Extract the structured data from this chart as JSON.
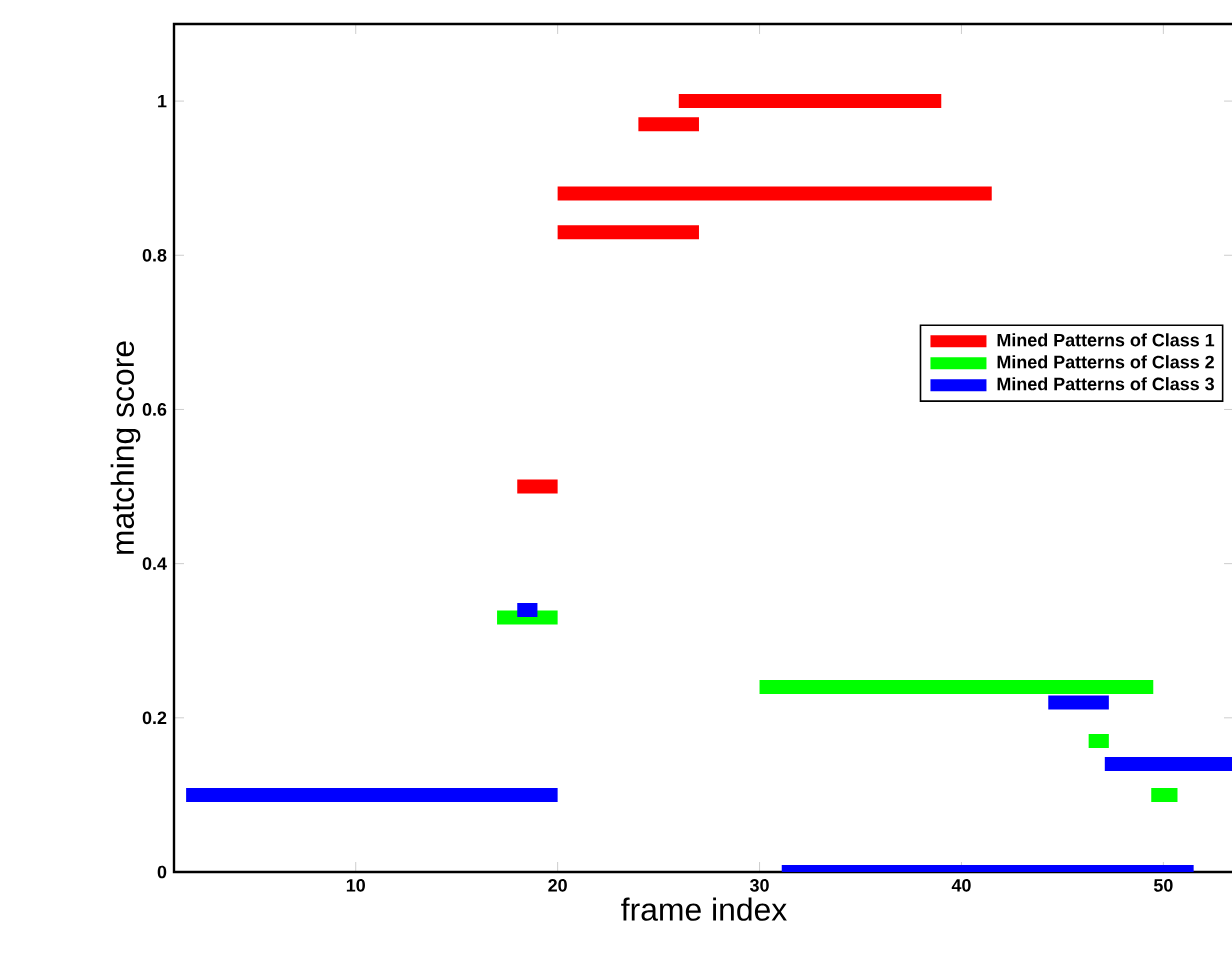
{
  "chart_data": {
    "type": "line",
    "xlabel": "frame index",
    "ylabel": "matching score",
    "xlim": [
      1,
      53.5
    ],
    "ylim": [
      0,
      1.1
    ],
    "xticks": [
      10,
      20,
      30,
      40,
      50
    ],
    "yticks": [
      0,
      0.2,
      0.4,
      0.6,
      0.8,
      1
    ],
    "legend": "right",
    "series": [
      {
        "name": "Mined Patterns of Class 1",
        "color": "#ff0000",
        "x": [
          26,
          39,
          null,
          24,
          27,
          null,
          20,
          41.5,
          null,
          20,
          27,
          null,
          18,
          20
        ],
        "values": [
          1,
          1,
          null,
          0.97,
          0.97,
          null,
          0.88,
          0.88,
          null,
          0.83,
          0.83,
          null,
          0.5,
          0.5
        ]
      },
      {
        "name": "Mined Patterns of Class 2",
        "color": "#00ff00",
        "x": [
          17,
          20,
          null,
          30,
          49.5,
          null,
          46.3,
          47.3,
          null,
          49.4,
          50.7
        ],
        "values": [
          0.33,
          0.33,
          null,
          0.24,
          0.24,
          null,
          0.17,
          0.17,
          null,
          0.1,
          0.1
        ]
      },
      {
        "name": "Mined Patterns of Class 3",
        "color": "#0000ff",
        "x": [
          18,
          19,
          null,
          44.3,
          47.3,
          null,
          47.1,
          53.5,
          null,
          1.6,
          20,
          null,
          31.1,
          51.5
        ],
        "values": [
          0.34,
          0.34,
          null,
          0.22,
          0.22,
          null,
          0.14,
          0.14,
          null,
          0.1,
          0.1,
          null,
          0,
          0
        ]
      }
    ]
  }
}
